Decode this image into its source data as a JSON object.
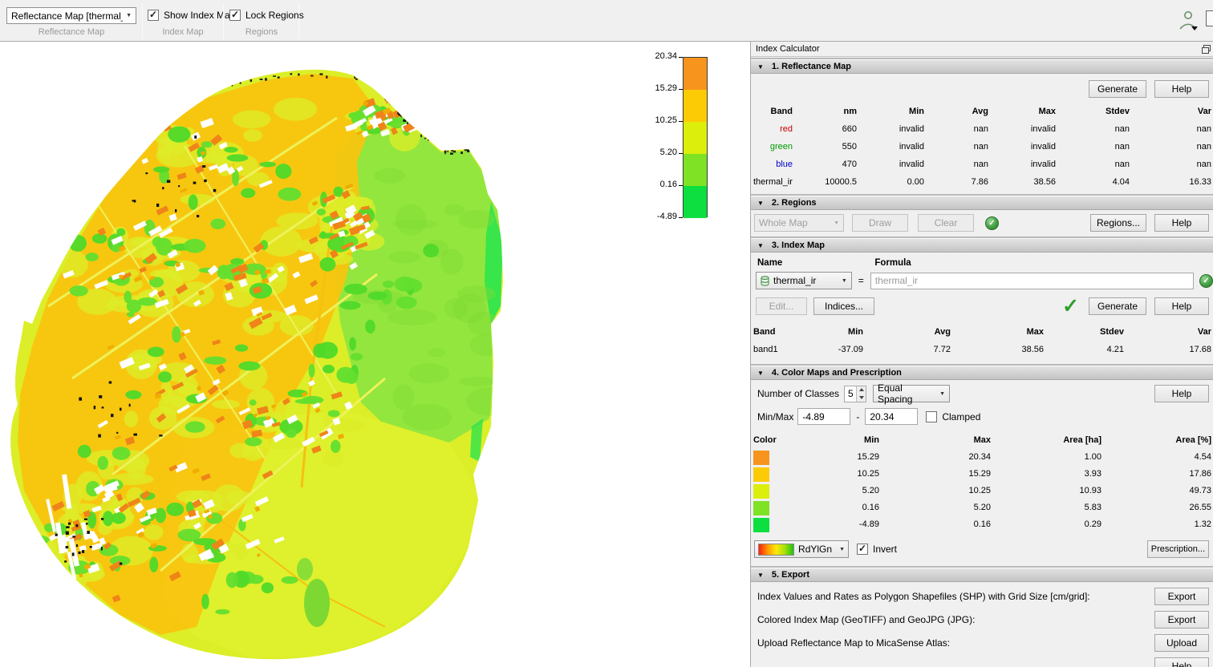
{
  "toolbar": {
    "reflectance_dropdown": "Reflectance Map [thermal_ir]",
    "reflectance_group_label": "Reflectance Map",
    "show_index_map_label": "Show Index Map",
    "index_map_group_label": "Index Map",
    "lock_regions_label": "Lock Regions",
    "regions_group_label": "Regions"
  },
  "colorbar": {
    "ticks": [
      "20.34",
      "15.29",
      "10.25",
      "5.20",
      "0.16",
      "-4.89"
    ],
    "colors": [
      "#F7941D",
      "#FCCB05",
      "#DCEE0B",
      "#7FE225",
      "#0CDF3F"
    ]
  },
  "panel": {
    "title": "Index Calculator",
    "s1": {
      "title": "1. Reflectance Map",
      "generate": "Generate",
      "help": "Help",
      "headers": [
        "Band",
        "nm",
        "Min",
        "Avg",
        "Max",
        "Stdev",
        "Var"
      ],
      "rows": [
        [
          "red",
          "660",
          "invalid",
          "nan",
          "invalid",
          "nan",
          "nan"
        ],
        [
          "green",
          "550",
          "invalid",
          "nan",
          "invalid",
          "nan",
          "nan"
        ],
        [
          "blue",
          "470",
          "invalid",
          "nan",
          "invalid",
          "nan",
          "nan"
        ],
        [
          "thermal_ir",
          "10000.5",
          "0.00",
          "7.86",
          "38.56",
          "4.04",
          "16.33"
        ]
      ],
      "band_colors": [
        "#cc0000",
        "#009900",
        "#0000cc",
        "#000000"
      ]
    },
    "s2": {
      "title": "2. Regions",
      "whole_map": "Whole Map",
      "draw": "Draw",
      "clear": "Clear",
      "regions": "Regions...",
      "help": "Help"
    },
    "s3": {
      "title": "3. Index Map",
      "name_label": "Name",
      "formula_label": "Formula",
      "name_value": "thermal_ir",
      "equals": "=",
      "formula_value": "thermal_ir",
      "edit": "Edit...",
      "indices": "Indices...",
      "generate": "Generate",
      "help": "Help",
      "headers": [
        "Band",
        "Min",
        "Avg",
        "Max",
        "Stdev",
        "Var"
      ],
      "rows": [
        [
          "band1",
          "-37.09",
          "7.72",
          "38.56",
          "4.21",
          "17.68"
        ]
      ]
    },
    "s4": {
      "title": "4. Color Maps and Prescription",
      "classes_label": "Number of Classes",
      "classes_value": "5",
      "spacing_value": "Equal Spacing",
      "help": "Help",
      "minmax_label": "Min/Max",
      "min_value": "-4.89",
      "dash": "-",
      "max_value": "20.34",
      "clamped_label": "Clamped",
      "headers": [
        "Color",
        "Min",
        "Max",
        "Area [ha]",
        "Area [%]"
      ],
      "rows": [
        [
          "#F7941D",
          "15.29",
          "20.34",
          "1.00",
          "4.54"
        ],
        [
          "#FCCB05",
          "10.25",
          "15.29",
          "3.93",
          "17.86"
        ],
        [
          "#DCEE0B",
          "5.20",
          "10.25",
          "10.93",
          "49.73"
        ],
        [
          "#7FE225",
          "0.16",
          "5.20",
          "5.83",
          "26.55"
        ],
        [
          "#0CDF3F",
          "-4.89",
          "0.16",
          "0.29",
          "1.32"
        ]
      ],
      "colormap_value": "RdYlGn",
      "invert_label": "Invert",
      "prescription": "Prescription..."
    },
    "s5": {
      "title": "5. Export",
      "items": [
        {
          "label": "Index Values and Rates as Polygon Shapefiles (SHP) with Grid Size [cm/grid]:",
          "button": "Export"
        },
        {
          "label": "Colored Index Map (GeoTIFF) and GeoJPG (JPG):",
          "button": "Export"
        },
        {
          "label": "Upload Reflectance Map to MicaSense Atlas:",
          "button": "Upload"
        }
      ],
      "help": "Help"
    }
  },
  "map": {
    "palette": {
      "base": "#dcee28",
      "urban_gold": "#f9c40f",
      "green_smooth": "#93e63e",
      "deep_green": "#2fe44c",
      "bottom_yellow": "#dff02c",
      "building_white": "#ffffff",
      "building_orange": "#ef8418",
      "patch_green": "#63de2e",
      "speck_black": "#111111",
      "road_pale": "#eef25a",
      "road_gold": "#f6c011"
    },
    "rdylgn_gradient": [
      "#ff1e10",
      "#ff9800",
      "#ffe80a",
      "#a6e00a",
      "#1ec214"
    ]
  }
}
